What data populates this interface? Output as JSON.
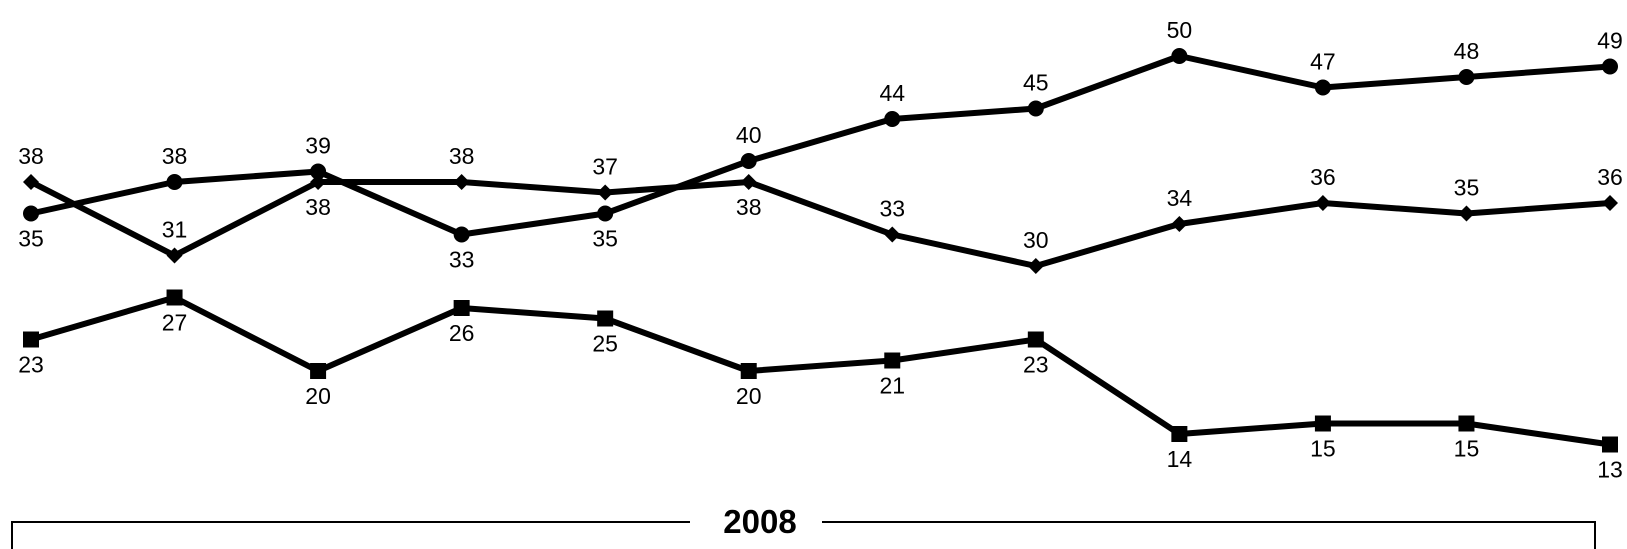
{
  "chart_data": {
    "type": "line",
    "year_bracket": "2008",
    "ylim": [
      0,
      55
    ],
    "grid": false,
    "legend": "none",
    "x": [
      1,
      2,
      3,
      4,
      5,
      6,
      7,
      8,
      9,
      10,
      11,
      12
    ],
    "series": [
      {
        "marker": "circle",
        "color": "#000000",
        "values": [
          35,
          38,
          39,
          33,
          35,
          40,
          44,
          45,
          50,
          47,
          48,
          49
        ],
        "labels": [
          "35",
          "38",
          "39",
          "33",
          "35",
          "40",
          "44",
          "45",
          "50",
          "47",
          "48",
          "49"
        ]
      },
      {
        "marker": "diamond",
        "color": "#000000",
        "values": [
          38,
          31,
          38,
          38,
          37,
          38,
          33,
          30,
          34,
          36,
          35,
          36
        ],
        "labels": [
          "38",
          "31",
          "38",
          "38",
          "37",
          "38",
          "33",
          "30",
          "34",
          "36",
          "35",
          "36"
        ]
      },
      {
        "marker": "square",
        "color": "#000000",
        "values": [
          23,
          27,
          20,
          26,
          25,
          20,
          21,
          23,
          14,
          15,
          15,
          13
        ],
        "labels": [
          "23",
          "27",
          "20",
          "26",
          "25",
          "20",
          "21",
          "23",
          "14",
          "15",
          "15",
          "13"
        ]
      }
    ]
  }
}
